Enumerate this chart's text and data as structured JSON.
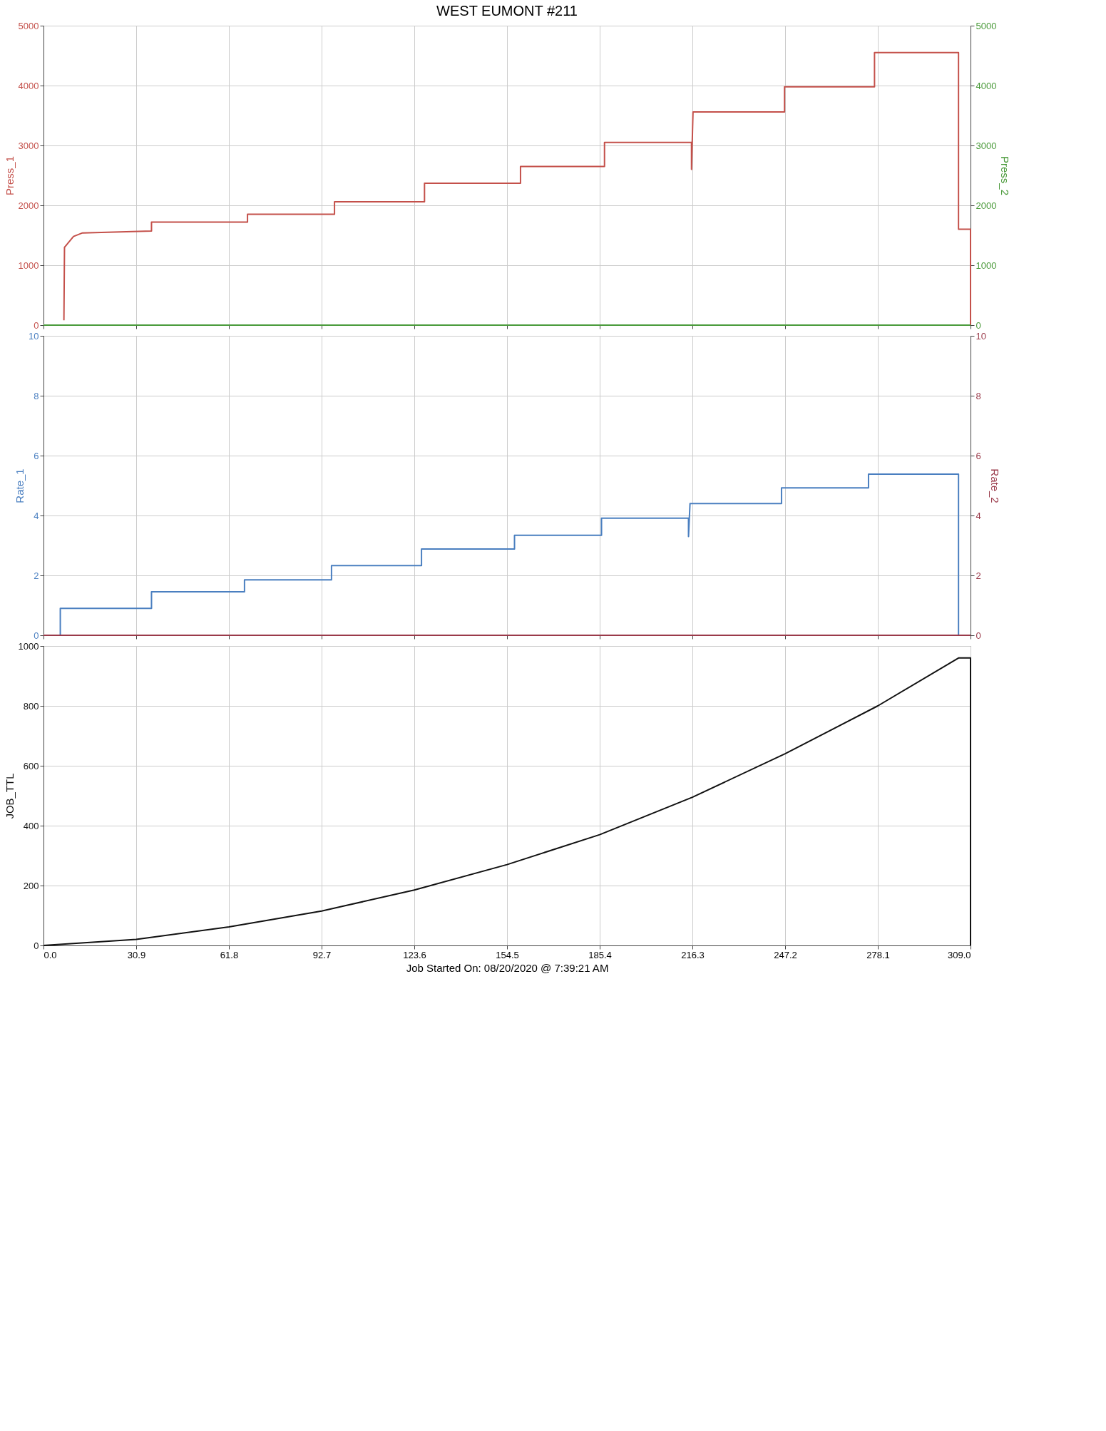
{
  "chart_data": [
    {
      "type": "line",
      "title": "WEST EUMONT #211",
      "xlim": [
        0,
        309
      ],
      "xticks": [
        0,
        30.9,
        61.8,
        92.7,
        123.6,
        154.5,
        185.4,
        216.3,
        247.2,
        278.1,
        309
      ],
      "ylim": [
        0,
        5000
      ],
      "yticks": [
        0,
        1000,
        2000,
        3000,
        4000,
        5000
      ],
      "y2lim": [
        0,
        5000
      ],
      "y2ticks": [
        0,
        1000,
        2000,
        3000,
        4000,
        5000
      ],
      "grid": true,
      "tick_labels": "y",
      "line_style": "solid",
      "series": [
        {
          "name": "Press_1",
          "color": "#c4504a",
          "x": [
            6.8,
            7,
            10,
            13,
            36,
            36,
            68,
            68,
            97,
            97,
            127,
            127,
            159,
            159,
            187,
            187,
            216,
            216,
            216.5,
            247,
            247,
            277,
            277,
            305,
            305,
            309,
            309
          ],
          "values": [
            80,
            1300,
            1480,
            1540,
            1570,
            1720,
            1720,
            1850,
            1850,
            2060,
            2060,
            2370,
            2370,
            2650,
            2650,
            3050,
            3050,
            2600,
            3560,
            3560,
            3980,
            3980,
            4550,
            4550,
            1600,
            1600,
            0
          ]
        },
        {
          "name": "Press_2",
          "color": "#4a9a3a",
          "axis": "y2",
          "x": [
            0,
            309
          ],
          "values": [
            0,
            0
          ]
        }
      ]
    },
    {
      "type": "line",
      "xlim": [
        0,
        309
      ],
      "xticks": [
        0,
        30.9,
        61.8,
        92.7,
        123.6,
        154.5,
        185.4,
        216.3,
        247.2,
        278.1,
        309
      ],
      "ylim": [
        0,
        10
      ],
      "yticks": [
        0,
        2,
        4,
        6,
        8,
        10
      ],
      "y2lim": [
        0,
        10
      ],
      "y2ticks": [
        0,
        2,
        4,
        6,
        8,
        10
      ],
      "grid": true,
      "tick_labels": "y",
      "line_style": "solid",
      "series": [
        {
          "name": "Rate_1",
          "color": "#4a7fc0",
          "x": [
            5.6,
            5.6,
            36,
            36,
            67,
            67,
            96,
            96,
            126,
            126,
            157,
            157,
            186,
            186,
            215,
            215,
            215.5,
            246,
            246,
            275,
            275,
            305,
            305
          ],
          "values": [
            0,
            0.9,
            0.9,
            1.45,
            1.45,
            1.85,
            1.85,
            2.33,
            2.33,
            2.88,
            2.88,
            3.34,
            3.34,
            3.91,
            3.91,
            3.3,
            4.4,
            4.4,
            4.92,
            4.92,
            5.38,
            5.38,
            0
          ]
        },
        {
          "name": "Rate_2",
          "color": "#9a3a4a",
          "axis": "y2",
          "x": [
            0,
            309
          ],
          "values": [
            0,
            0
          ]
        }
      ]
    },
    {
      "type": "line",
      "xlabel": "Job Started On: 08/20/2020 @ 7:39:21 AM",
      "xlim": [
        0,
        309
      ],
      "xticks": [
        {
          "value": 0,
          "label": "0.0"
        },
        30.9,
        61.8,
        92.7,
        123.6,
        154.5,
        185.4,
        216.3,
        247.2,
        278.1,
        {
          "value": 309,
          "label": "309.0"
        }
      ],
      "ylim": [
        0,
        1000
      ],
      "yticks": [
        0,
        200,
        400,
        600,
        800,
        1000
      ],
      "grid": true,
      "line_style": "solid",
      "series": [
        {
          "name": "JOB_TTL",
          "color": "#111111",
          "x": [
            0,
            30.9,
            61.8,
            92.7,
            123.6,
            154.5,
            185.4,
            216.3,
            247.2,
            278.1,
            305,
            309,
            309
          ],
          "values": [
            0,
            20,
            62,
            115,
            185,
            270,
            370,
            495,
            640,
            800,
            960,
            960,
            0
          ]
        }
      ]
    }
  ]
}
